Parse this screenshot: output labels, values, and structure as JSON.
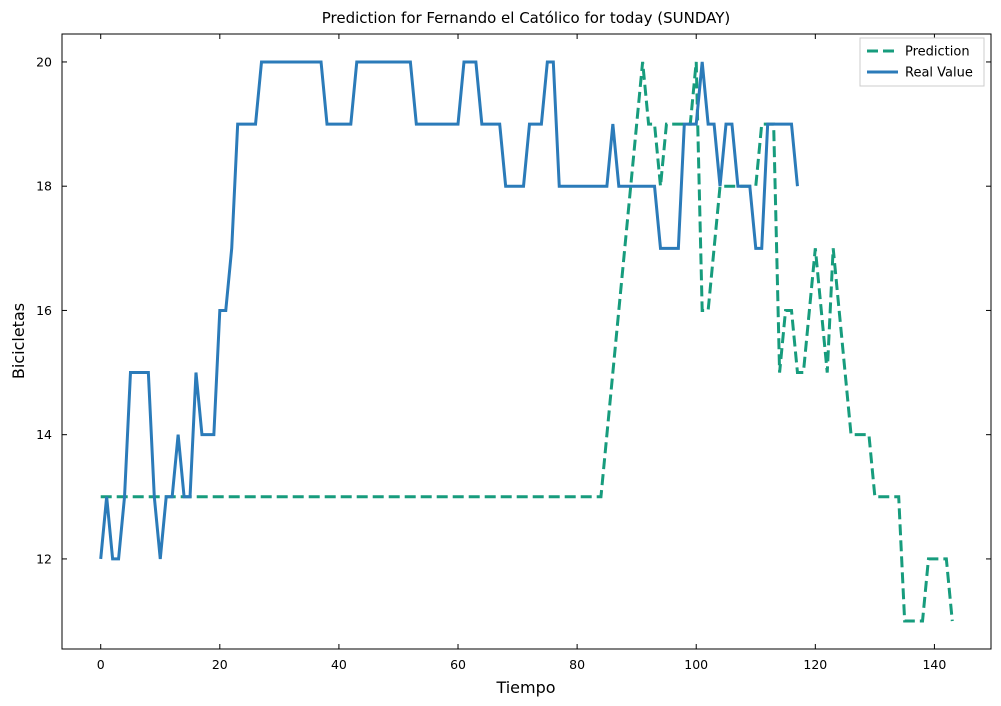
{
  "chart_data": {
    "type": "line",
    "title": "Prediction for Fernando el Católico for today (SUNDAY)",
    "xlabel": "Tiempo",
    "ylabel": "Bicicletas",
    "xlim": [
      -6.5,
      149.5
    ],
    "ylim": [
      10.55,
      20.45
    ],
    "xticks": [
      0,
      20,
      40,
      60,
      80,
      100,
      120,
      140
    ],
    "yticks": [
      12,
      14,
      16,
      18,
      20
    ],
    "grid": false,
    "legend_position": "top-right",
    "series": [
      {
        "name": "Prediction",
        "style": "dashed",
        "color": "#179c7d",
        "points": [
          [
            0,
            13
          ],
          [
            84,
            13
          ],
          [
            91,
            20
          ],
          [
            92,
            19
          ],
          [
            93,
            19
          ],
          [
            94,
            18
          ],
          [
            95,
            19
          ],
          [
            96,
            19
          ],
          [
            97,
            19
          ],
          [
            98,
            19
          ],
          [
            99,
            19
          ],
          [
            100,
            20
          ],
          [
            101,
            16
          ],
          [
            102,
            16
          ],
          [
            103,
            17
          ],
          [
            104,
            18
          ],
          [
            105,
            18
          ],
          [
            106,
            18
          ],
          [
            107,
            18
          ],
          [
            108,
            18
          ],
          [
            109,
            18
          ],
          [
            110,
            18
          ],
          [
            111,
            19
          ],
          [
            112,
            19
          ],
          [
            113,
            19
          ],
          [
            114,
            15
          ],
          [
            115,
            16
          ],
          [
            116,
            16
          ],
          [
            117,
            15
          ],
          [
            118,
            15
          ],
          [
            119,
            16
          ],
          [
            120,
            17
          ],
          [
            121,
            16
          ],
          [
            122,
            15
          ],
          [
            123,
            17
          ],
          [
            124,
            16
          ],
          [
            125,
            15
          ],
          [
            126,
            14
          ],
          [
            127,
            14
          ],
          [
            128,
            14
          ],
          [
            129,
            14
          ],
          [
            130,
            13
          ],
          [
            131,
            13
          ],
          [
            132,
            13
          ],
          [
            133,
            13
          ],
          [
            134,
            13
          ],
          [
            135,
            11
          ],
          [
            136,
            11
          ],
          [
            137,
            11
          ],
          [
            138,
            11
          ],
          [
            139,
            12
          ],
          [
            140,
            12
          ],
          [
            141,
            12
          ],
          [
            142,
            12
          ],
          [
            143,
            11
          ]
        ]
      },
      {
        "name": "Real Value",
        "style": "solid",
        "color": "#2b7bb9",
        "points": [
          [
            0,
            12
          ],
          [
            1,
            13
          ],
          [
            2,
            12
          ],
          [
            3,
            12
          ],
          [
            4,
            13
          ],
          [
            5,
            15
          ],
          [
            6,
            15
          ],
          [
            7,
            15
          ],
          [
            8,
            15
          ],
          [
            9,
            13
          ],
          [
            10,
            12
          ],
          [
            11,
            13
          ],
          [
            12,
            13
          ],
          [
            13,
            14
          ],
          [
            14,
            13
          ],
          [
            15,
            13
          ],
          [
            16,
            15
          ],
          [
            17,
            14
          ],
          [
            18,
            14
          ],
          [
            19,
            14
          ],
          [
            20,
            16
          ],
          [
            21,
            16
          ],
          [
            22,
            17
          ],
          [
            23,
            19
          ],
          [
            24,
            19
          ],
          [
            25,
            19
          ],
          [
            26,
            19
          ],
          [
            27,
            20
          ],
          [
            28,
            20
          ],
          [
            29,
            20
          ],
          [
            30,
            20
          ],
          [
            31,
            20
          ],
          [
            32,
            20
          ],
          [
            33,
            20
          ],
          [
            34,
            20
          ],
          [
            35,
            20
          ],
          [
            36,
            20
          ],
          [
            37,
            20
          ],
          [
            38,
            19
          ],
          [
            39,
            19
          ],
          [
            40,
            19
          ],
          [
            41,
            19
          ],
          [
            42,
            19
          ],
          [
            43,
            20
          ],
          [
            44,
            20
          ],
          [
            45,
            20
          ],
          [
            46,
            20
          ],
          [
            47,
            20
          ],
          [
            48,
            20
          ],
          [
            49,
            20
          ],
          [
            50,
            20
          ],
          [
            51,
            20
          ],
          [
            52,
            20
          ],
          [
            53,
            19
          ],
          [
            54,
            19
          ],
          [
            55,
            19
          ],
          [
            56,
            19
          ],
          [
            57,
            19
          ],
          [
            58,
            19
          ],
          [
            59,
            19
          ],
          [
            60,
            19
          ],
          [
            61,
            20
          ],
          [
            62,
            20
          ],
          [
            63,
            20
          ],
          [
            64,
            19
          ],
          [
            65,
            19
          ],
          [
            66,
            19
          ],
          [
            67,
            19
          ],
          [
            68,
            18
          ],
          [
            69,
            18
          ],
          [
            70,
            18
          ],
          [
            71,
            18
          ],
          [
            72,
            19
          ],
          [
            73,
            19
          ],
          [
            74,
            19
          ],
          [
            75,
            20
          ],
          [
            76,
            20
          ],
          [
            77,
            18
          ],
          [
            78,
            18
          ],
          [
            79,
            18
          ],
          [
            80,
            18
          ],
          [
            81,
            18
          ],
          [
            82,
            18
          ],
          [
            83,
            18
          ],
          [
            84,
            18
          ],
          [
            85,
            18
          ],
          [
            86,
            19
          ],
          [
            87,
            18
          ],
          [
            88,
            18
          ],
          [
            89,
            18
          ],
          [
            90,
            18
          ],
          [
            91,
            18
          ],
          [
            92,
            18
          ],
          [
            93,
            18
          ],
          [
            94,
            17
          ],
          [
            95,
            17
          ],
          [
            96,
            17
          ],
          [
            97,
            17
          ],
          [
            98,
            19
          ],
          [
            99,
            19
          ],
          [
            100,
            19
          ],
          [
            101,
            20
          ],
          [
            102,
            19
          ],
          [
            103,
            19
          ],
          [
            104,
            18
          ],
          [
            105,
            19
          ],
          [
            106,
            19
          ],
          [
            107,
            18
          ],
          [
            108,
            18
          ],
          [
            109,
            18
          ],
          [
            110,
            17
          ],
          [
            111,
            17
          ],
          [
            112,
            19
          ],
          [
            113,
            19
          ],
          [
            114,
            19
          ],
          [
            115,
            19
          ],
          [
            116,
            19
          ],
          [
            117,
            18
          ]
        ]
      }
    ]
  }
}
